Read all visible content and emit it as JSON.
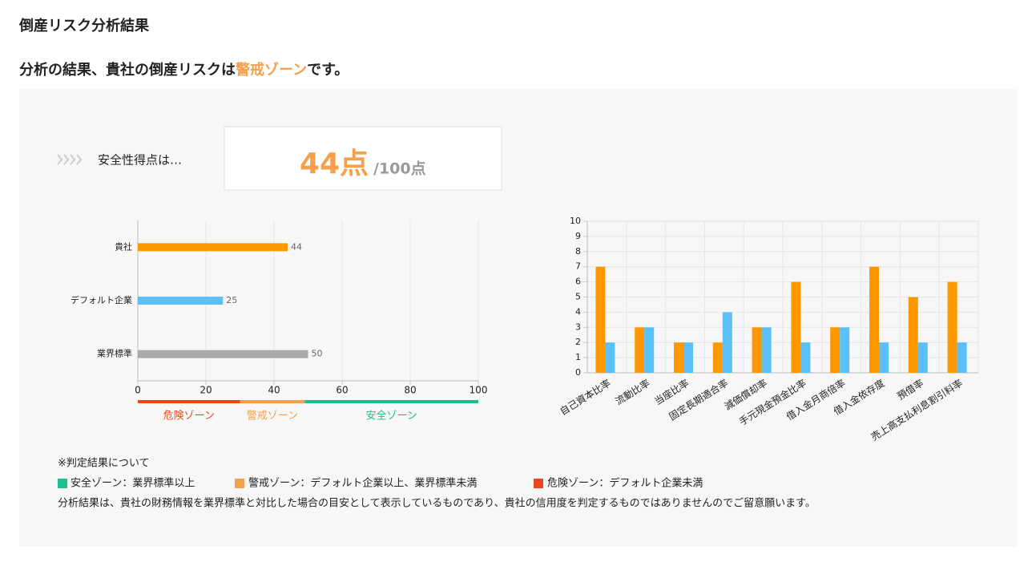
{
  "page": {
    "title": "倒産リスク分析結果",
    "result": {
      "prefix": "分析の結果、貴社の倒産リスクは",
      "zone": "警戒ゾーン",
      "zone_color": "#f5a04a",
      "suffix": "です。"
    },
    "score": {
      "label": "安全性得点は…",
      "value": "44点",
      "max": "/100点"
    },
    "notes": {
      "heading": "※判定結果について",
      "items": [
        {
          "color": "#1dbf8e",
          "text": "安全ゾーン：業界標準以上"
        },
        {
          "color": "#f5a04a",
          "text": "警戒ゾーン：デフォルト企業以上、業界標準未満"
        },
        {
          "color": "#e8471c",
          "text": "危険ゾーン：デフォルト企業未満"
        }
      ],
      "disclaimer": "分析結果は、貴社の財務情報を業界標準と対比した場合の目安として表示しているものであり、貴社の信用度を判定するものではありませんのでご留意願います。"
    }
  },
  "chart_data": [
    {
      "type": "bar",
      "orientation": "horizontal",
      "categories": [
        "貴社",
        "デフォルト企業",
        "業界標準"
      ],
      "values": [
        44,
        25,
        50
      ],
      "colors": [
        "#ff9800",
        "#5bc0f8",
        "#aaaaaa"
      ],
      "xlim": [
        0,
        100
      ],
      "xticks": [
        0,
        20,
        40,
        60,
        80,
        100
      ],
      "grid": true,
      "zones": [
        {
          "from": 0,
          "to": 30,
          "label": "危険ゾーン",
          "color": "#e8471c"
        },
        {
          "from": 30,
          "to": 49,
          "label": "警戒ゾーン",
          "color": "#f5a04a"
        },
        {
          "from": 49,
          "to": 100,
          "label": "安全ゾーン",
          "color": "#1dbf8e"
        }
      ]
    },
    {
      "type": "bar",
      "orientation": "vertical",
      "categories": [
        "自己資本比率",
        "流動比率",
        "当座比率",
        "固定長期適合率",
        "減価償却率",
        "手元現金預金比率",
        "借入金月商倍率",
        "借入金依存度",
        "預借率",
        "売上高支払利息割引料率"
      ],
      "series": [
        {
          "color": "#ff9800",
          "values": [
            7,
            3,
            2,
            2,
            3,
            6,
            3,
            7,
            5,
            6
          ]
        },
        {
          "color": "#5bc0f8",
          "values": [
            2,
            3,
            2,
            4,
            3,
            2,
            3,
            2,
            2,
            2
          ]
        }
      ],
      "ylim": [
        0,
        10
      ],
      "yticks": [
        0,
        1,
        2,
        3,
        4,
        5,
        6,
        7,
        8,
        9,
        10
      ],
      "grid": true
    }
  ]
}
